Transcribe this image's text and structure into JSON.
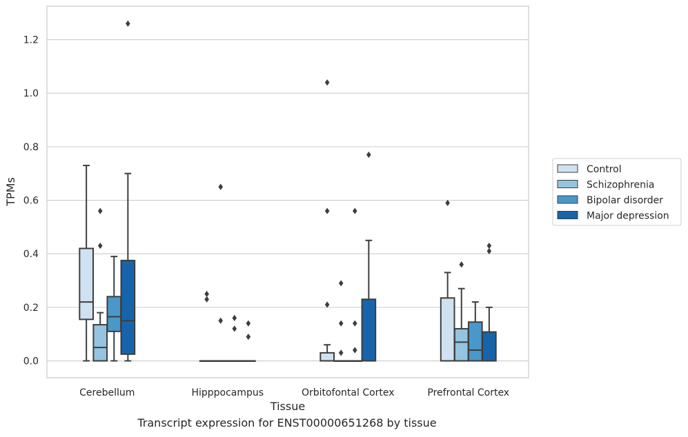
{
  "chart_data": {
    "type": "box",
    "title": "",
    "caption": "Transcript expression for ENST00000651268 by tissue",
    "xlabel": "Tissue",
    "ylabel": "TPMs",
    "ylim": [
      -0.063,
      1.325
    ],
    "yticks": [
      0.0,
      0.2,
      0.4,
      0.6,
      0.8,
      1.0,
      1.2
    ],
    "ytick_labels": [
      "0.0",
      "0.2",
      "0.4",
      "0.6",
      "0.8",
      "1.0",
      "1.2"
    ],
    "grid": "horizontal",
    "legend_position": "right",
    "categories": [
      "Cerebellum",
      "Hipppocampus",
      "Orbitofontal Cortex",
      "Prefrontal Cortex"
    ],
    "series": [
      {
        "name": "Control",
        "color": "#d0e1f2",
        "boxes": [
          {
            "whisker_low": 0.0,
            "q1": 0.155,
            "median": 0.22,
            "q3": 0.42,
            "whisker_high": 0.73,
            "outliers": []
          },
          {
            "whisker_low": 0.0,
            "q1": 0.0,
            "median": 0.0,
            "q3": 0.0,
            "whisker_high": 0.0,
            "outliers": [
              0.25,
              0.23
            ]
          },
          {
            "whisker_low": 0.0,
            "q1": 0.0,
            "median": 0.0,
            "q3": 0.03,
            "whisker_high": 0.06,
            "outliers": [
              0.21,
              0.56,
              1.04
            ]
          },
          {
            "whisker_low": 0.0,
            "q1": 0.0,
            "median": 0.0,
            "q3": 0.235,
            "whisker_high": 0.33,
            "outliers": [
              0.59
            ]
          }
        ]
      },
      {
        "name": "Schizophrenia",
        "color": "#94c4df",
        "boxes": [
          {
            "whisker_low": 0.0,
            "q1": 0.0,
            "median": 0.05,
            "q3": 0.135,
            "whisker_high": 0.18,
            "outliers": [
              0.43,
              0.56
            ]
          },
          {
            "whisker_low": 0.0,
            "q1": 0.0,
            "median": 0.0,
            "q3": 0.0,
            "whisker_high": 0.0,
            "outliers": [
              0.15,
              0.65
            ]
          },
          {
            "whisker_low": 0.0,
            "q1": 0.0,
            "median": 0.0,
            "q3": 0.0,
            "whisker_high": 0.0,
            "outliers": [
              0.03,
              0.14,
              0.29
            ]
          },
          {
            "whisker_low": 0.0,
            "q1": 0.0,
            "median": 0.07,
            "q3": 0.12,
            "whisker_high": 0.27,
            "outliers": [
              0.36
            ]
          }
        ]
      },
      {
        "name": "Bipolar disorder",
        "color": "#4a98c9",
        "boxes": [
          {
            "whisker_low": 0.0,
            "q1": 0.11,
            "median": 0.165,
            "q3": 0.24,
            "whisker_high": 0.39,
            "outliers": []
          },
          {
            "whisker_low": 0.0,
            "q1": 0.0,
            "median": 0.0,
            "q3": 0.0,
            "whisker_high": 0.0,
            "outliers": [
              0.12,
              0.16
            ]
          },
          {
            "whisker_low": 0.0,
            "q1": 0.0,
            "median": 0.0,
            "q3": 0.0,
            "whisker_high": 0.0,
            "outliers": [
              0.04,
              0.14,
              0.56
            ]
          },
          {
            "whisker_low": 0.0,
            "q1": 0.0,
            "median": 0.04,
            "q3": 0.145,
            "whisker_high": 0.22,
            "outliers": []
          }
        ]
      },
      {
        "name": "Major depression",
        "color": "#1764ab",
        "boxes": [
          {
            "whisker_low": 0.0,
            "q1": 0.025,
            "median": 0.15,
            "q3": 0.375,
            "whisker_high": 0.7,
            "outliers": [
              1.26
            ]
          },
          {
            "whisker_low": 0.0,
            "q1": 0.0,
            "median": 0.0,
            "q3": 0.0,
            "whisker_high": 0.0,
            "outliers": [
              0.09,
              0.14
            ]
          },
          {
            "whisker_low": 0.0,
            "q1": 0.0,
            "median": 0.0,
            "q3": 0.23,
            "whisker_high": 0.45,
            "outliers": [
              0.77
            ]
          },
          {
            "whisker_low": 0.0,
            "q1": 0.0,
            "median": 0.0,
            "q3": 0.108,
            "whisker_high": 0.2,
            "outliers": [
              0.41,
              0.43
            ]
          }
        ]
      }
    ]
  }
}
